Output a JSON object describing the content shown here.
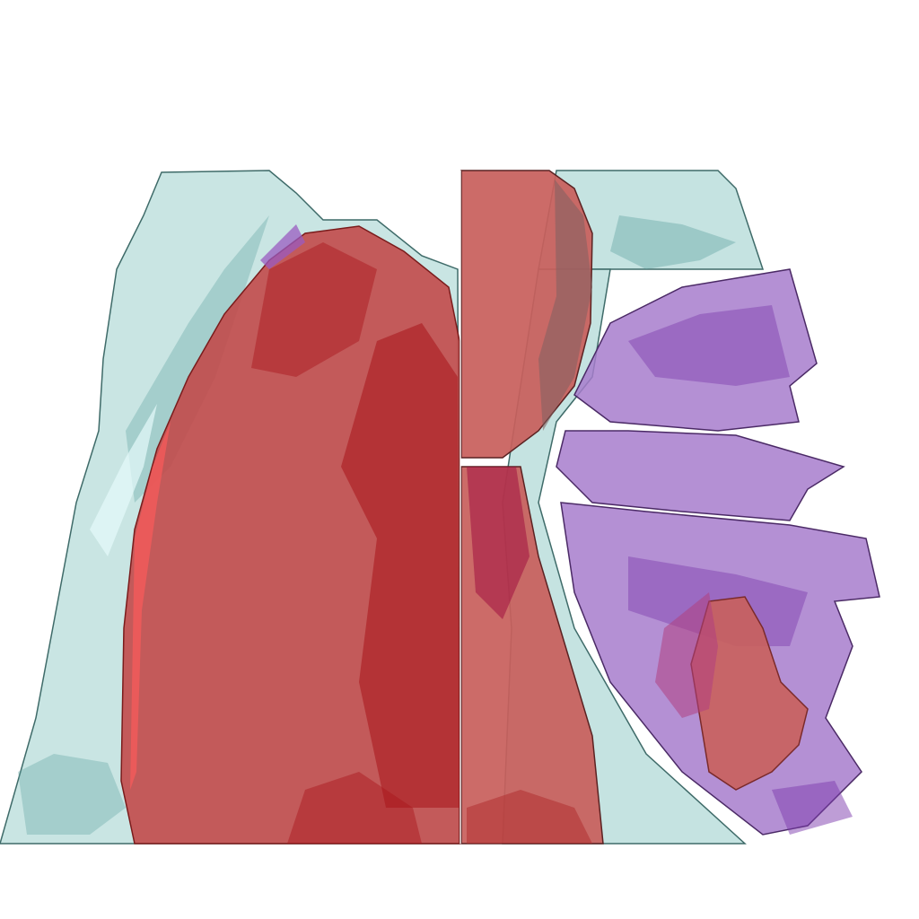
{
  "scene": {
    "background": "#ffffff",
    "structures": [
      {
        "name": "soft-tissue",
        "color": "#bfe0de",
        "edge": "#3f6b69",
        "shade": "#5fa3a0"
      },
      {
        "name": "left-organ",
        "color": "#c24a4a",
        "edge": "#7a1c1c",
        "shade": "#a8141a"
      },
      {
        "name": "center-organ",
        "color": "#c8605c",
        "edge": "#5a2222",
        "shade": "#b03030"
      },
      {
        "name": "right-segments",
        "color": "#a77ccc",
        "edge": "#4b2a66",
        "shade": "#7d3cae"
      },
      {
        "name": "right-lesion",
        "color": "#c9605c",
        "edge": "#7a2a2a",
        "shade": "#b04080"
      }
    ]
  }
}
